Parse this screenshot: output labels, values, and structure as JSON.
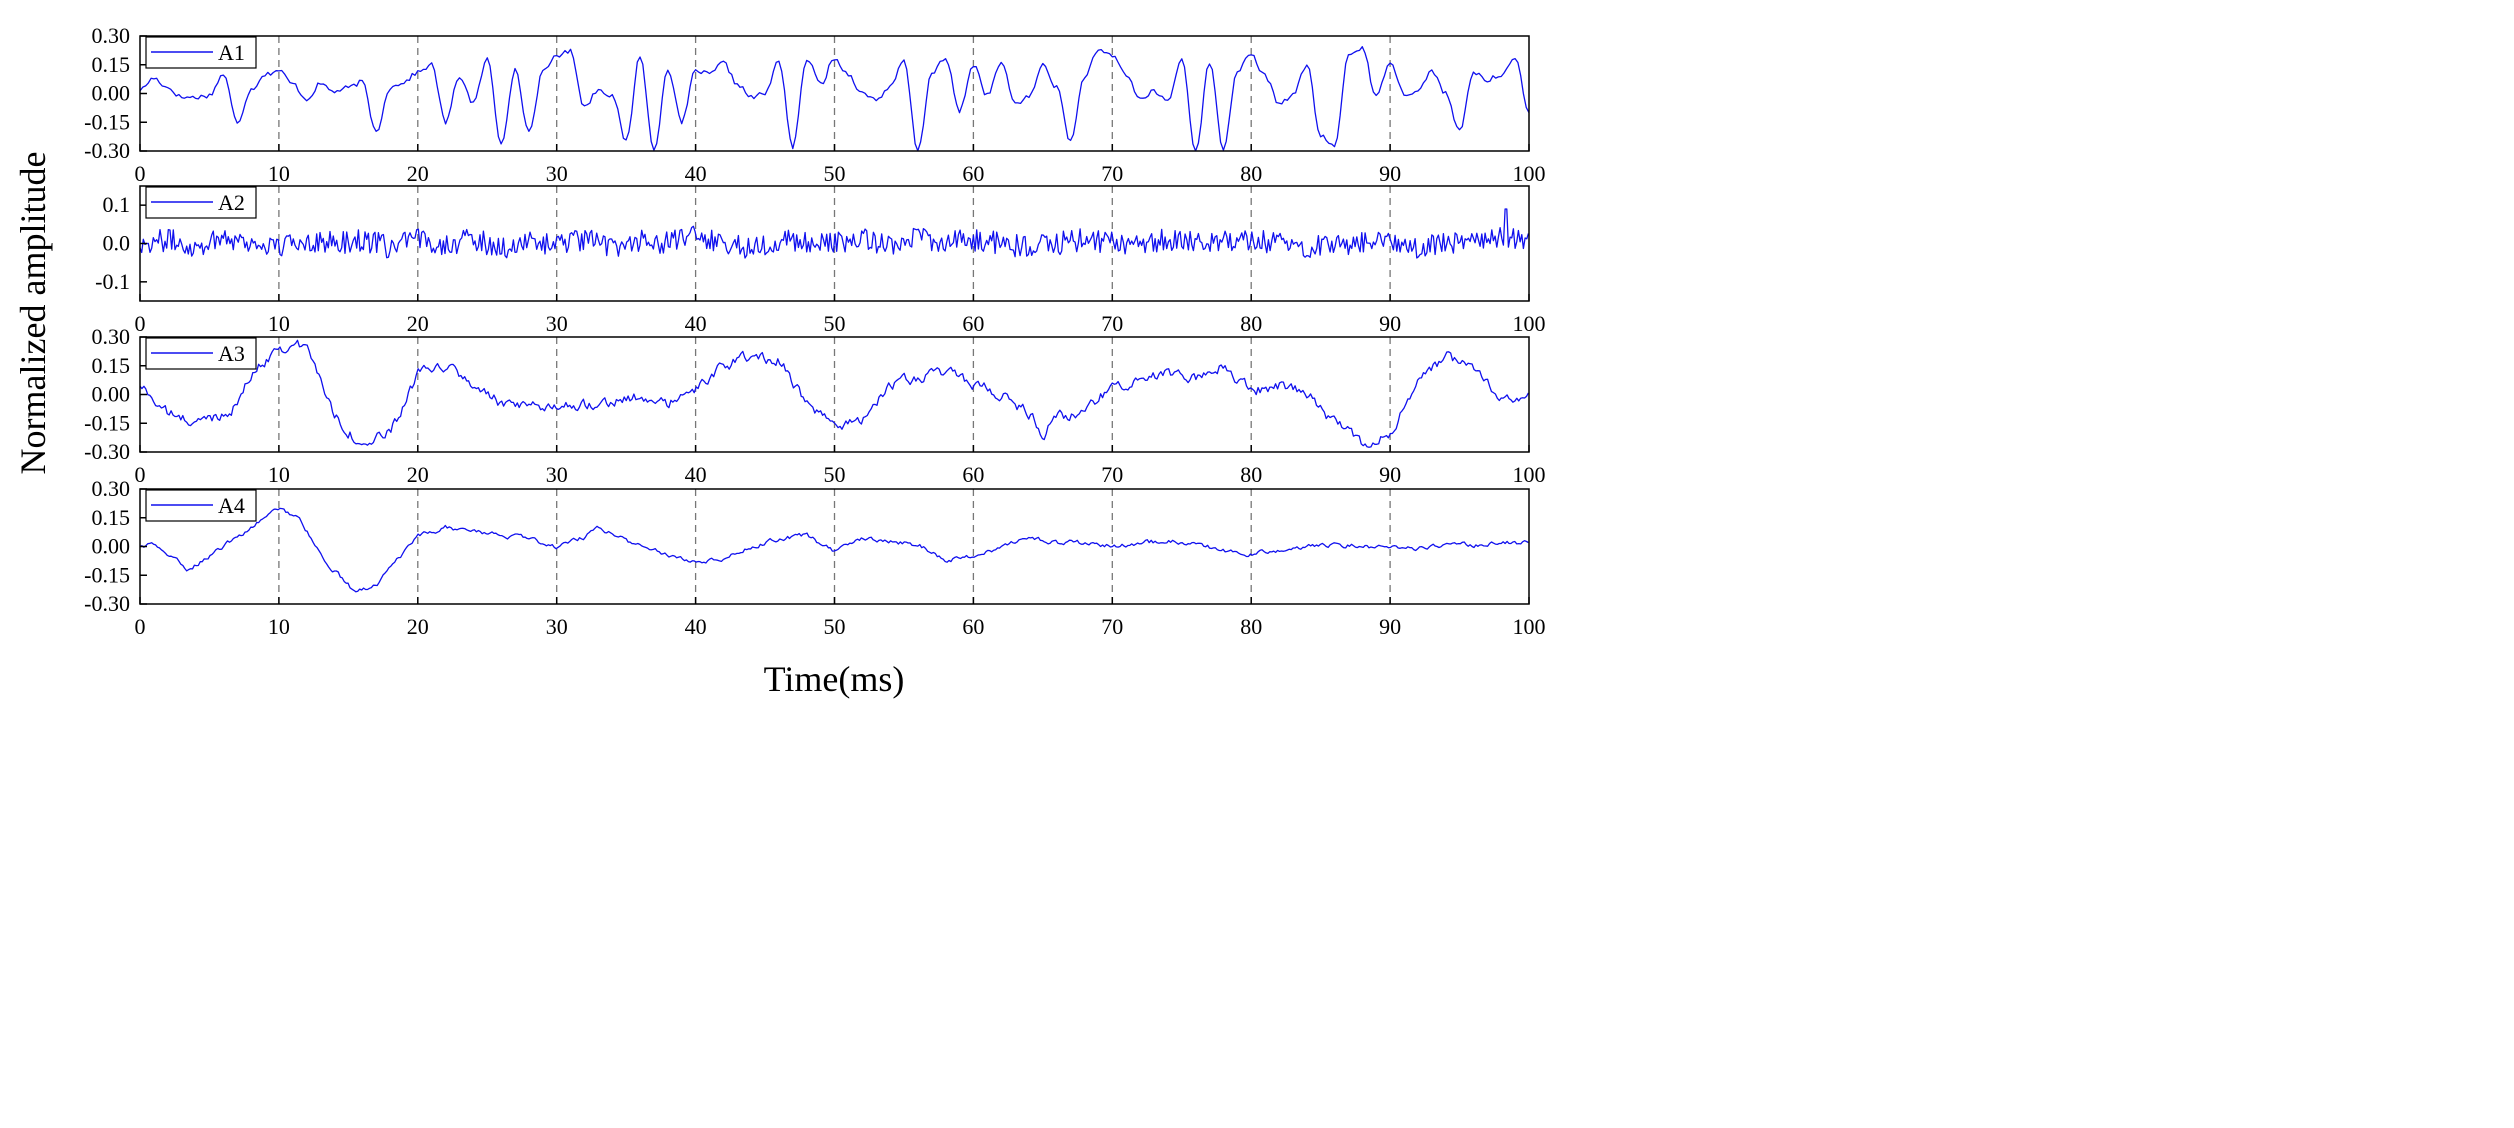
{
  "chart_data": {
    "type": "line",
    "ylabel": "Normalized amplitude",
    "xlabel": "Time(ms)",
    "x_range": [
      0,
      100
    ],
    "x_ticks": [
      0,
      10,
      20,
      30,
      40,
      50,
      60,
      70,
      80,
      90,
      100
    ],
    "vertical_gridlines": [
      10,
      20,
      30,
      40,
      50,
      60,
      70,
      80,
      90
    ],
    "grid_style": "dashed vertical",
    "line_color": "#1010ee",
    "panels": [
      {
        "name": "A1",
        "legend": "A1",
        "legend_position": "top-left",
        "ylim": [
          -0.3,
          0.3
        ],
        "y_ticks": [
          -0.3,
          -0.15,
          0.0,
          0.15,
          0.3
        ],
        "y_tick_labels": [
          "-0.30",
          "-0.15",
          "0.00",
          "0.15",
          "0.30"
        ],
        "x": [
          0,
          1,
          2,
          3,
          4,
          5,
          6,
          7,
          8,
          9,
          10,
          11,
          12,
          13,
          14,
          15,
          16,
          17,
          18,
          19,
          20,
          21,
          22,
          23,
          24,
          25,
          26,
          27,
          28,
          29,
          30,
          31,
          32,
          33,
          34,
          35,
          36,
          37,
          38,
          39,
          40,
          41,
          42,
          43,
          44,
          45,
          46,
          47,
          48,
          49,
          50,
          51,
          52,
          53,
          54,
          55,
          56,
          57,
          58,
          59,
          60,
          61,
          62,
          63,
          64,
          65,
          66,
          67,
          68,
          69,
          70,
          71,
          72,
          73,
          74,
          75,
          76,
          77,
          78,
          79,
          80,
          81,
          82,
          83,
          84,
          85,
          86,
          87,
          88,
          89,
          90,
          91,
          92,
          93,
          94,
          95,
          96,
          97,
          98,
          99,
          100
        ],
        "values": [
          0.02,
          0.08,
          0.03,
          -0.02,
          -0.02,
          -0.01,
          0.1,
          -0.15,
          0.02,
          0.1,
          0.12,
          0.05,
          -0.03,
          0.05,
          0.01,
          0.03,
          0.06,
          -0.2,
          0.03,
          0.06,
          0.11,
          0.15,
          -0.15,
          0.09,
          -0.05,
          0.18,
          -0.26,
          0.12,
          -0.2,
          0.11,
          0.2,
          0.22,
          -0.07,
          0.02,
          -0.01,
          -0.25,
          0.2,
          -0.3,
          0.13,
          -0.15,
          0.12,
          0.1,
          0.16,
          0.05,
          -0.02,
          0.0,
          0.17,
          -0.28,
          0.18,
          0.05,
          0.18,
          0.1,
          0.0,
          -0.03,
          0.03,
          0.17,
          -0.3,
          0.11,
          0.18,
          -0.09,
          0.15,
          -0.01,
          0.16,
          -0.05,
          -0.02,
          0.15,
          0.03,
          -0.25,
          0.09,
          0.22,
          0.2,
          0.1,
          -0.03,
          0.01,
          -0.04,
          0.18,
          -0.3,
          0.16,
          -0.29,
          0.12,
          0.2,
          0.09,
          -0.05,
          -0.01,
          0.15,
          -0.22,
          -0.28,
          0.2,
          0.24,
          -0.02,
          0.17,
          0.0,
          0.01,
          0.12,
          0.0,
          -0.2,
          0.11,
          0.07,
          0.1,
          0.18,
          -0.1
        ]
      },
      {
        "name": "A2",
        "legend": "A2",
        "legend_position": "top-left",
        "ylim": [
          -0.15,
          0.15
        ],
        "y_ticks": [
          -0.1,
          0.0,
          0.1
        ],
        "y_tick_labels": [
          "-0.1",
          "0.0",
          "0.1"
        ],
        "x": [
          0,
          2,
          4,
          6,
          8,
          10,
          12,
          14,
          16,
          18,
          20,
          22,
          24,
          26,
          28,
          30,
          32,
          34,
          36,
          38,
          40,
          42,
          44,
          46,
          48,
          50,
          52,
          54,
          56,
          58,
          60,
          62,
          64,
          66,
          68,
          70,
          72,
          74,
          76,
          78,
          80,
          82,
          84,
          86,
          88,
          90,
          92,
          94,
          96,
          98,
          100
        ],
        "values": [
          0.0,
          0.01,
          -0.01,
          0.02,
          0.0,
          -0.01,
          0.01,
          0.0,
          0.01,
          -0.01,
          0.01,
          0.0,
          0.01,
          -0.01,
          0.0,
          0.0,
          0.01,
          -0.01,
          0.01,
          0.0,
          0.02,
          0.0,
          -0.01,
          0.01,
          0.0,
          0.0,
          0.01,
          0.0,
          0.02,
          0.0,
          0.01,
          0.0,
          -0.01,
          0.0,
          0.01,
          0.0,
          0.0,
          0.01,
          0.0,
          0.01,
          0.01,
          0.0,
          -0.01,
          0.0,
          0.0,
          0.01,
          -0.01,
          0.0,
          0.01,
          0.02,
          0.0
        ],
        "noise_amplitude": 0.03,
        "peak": {
          "x": 98.3,
          "value": 0.09
        }
      },
      {
        "name": "A3",
        "legend": "A3",
        "legend_position": "top-left",
        "ylim": [
          -0.3,
          0.3
        ],
        "y_ticks": [
          -0.3,
          -0.15,
          0.0,
          0.15,
          0.3
        ],
        "y_tick_labels": [
          "-0.30",
          "-0.15",
          "0.00",
          "0.15",
          "0.30"
        ],
        "x": [
          0,
          2,
          4,
          6,
          7,
          8,
          10,
          12,
          14,
          16,
          18,
          20,
          22,
          24,
          26,
          28,
          30,
          32,
          34,
          36,
          38,
          40,
          42,
          44,
          46,
          48,
          50,
          52,
          54,
          56,
          58,
          60,
          62,
          64,
          65,
          66,
          68,
          70,
          72,
          74,
          76,
          78,
          80,
          82,
          84,
          86,
          88,
          90,
          92,
          94,
          96,
          98,
          100
        ],
        "values": [
          0.05,
          -0.1,
          -0.15,
          -0.1,
          -0.05,
          0.1,
          0.25,
          0.25,
          -0.1,
          -0.27,
          -0.2,
          0.1,
          0.15,
          0.05,
          -0.05,
          -0.08,
          -0.05,
          -0.05,
          -0.03,
          -0.02,
          -0.05,
          0.02,
          0.15,
          0.2,
          0.18,
          -0.05,
          -0.18,
          -0.12,
          0.05,
          0.08,
          0.12,
          0.05,
          0.0,
          -0.1,
          -0.2,
          -0.12,
          -0.1,
          0.05,
          0.08,
          0.12,
          0.08,
          0.15,
          0.02,
          0.05,
          0.0,
          -0.15,
          -0.25,
          -0.2,
          0.05,
          0.2,
          0.12,
          -0.02,
          0.0
        ],
        "noise_amplitude": 0.025
      },
      {
        "name": "A4",
        "legend": "A4",
        "legend_position": "top-left",
        "ylim": [
          -0.3,
          0.3
        ],
        "y_ticks": [
          -0.3,
          -0.15,
          0.0,
          0.15,
          0.3
        ],
        "y_tick_labels": [
          "-0.30",
          "-0.15",
          "0.00",
          "0.15",
          "0.30"
        ],
        "x": [
          0,
          1,
          3.5,
          6,
          8,
          10,
          11.5,
          13,
          15.5,
          17,
          20,
          22,
          24,
          26,
          28,
          30,
          32,
          33,
          36,
          38,
          40,
          42,
          44,
          46,
          48,
          50,
          52,
          54,
          56,
          58,
          60,
          62,
          64,
          66,
          68,
          70,
          72,
          74,
          76,
          78,
          80,
          82,
          84,
          86,
          88,
          90,
          92,
          94,
          96,
          98,
          100
        ],
        "values": [
          0.0,
          0.01,
          -0.12,
          0.0,
          0.1,
          0.2,
          0.15,
          -0.05,
          -0.24,
          -0.2,
          0.05,
          0.1,
          0.08,
          0.06,
          0.04,
          0.0,
          0.05,
          0.1,
          0.0,
          -0.04,
          -0.08,
          -0.06,
          0.0,
          0.04,
          0.06,
          -0.03,
          0.04,
          0.03,
          0.01,
          -0.07,
          -0.05,
          0.0,
          0.05,
          0.02,
          0.02,
          0.0,
          0.02,
          0.03,
          0.01,
          -0.02,
          -0.04,
          -0.02,
          0.0,
          0.01,
          0.0,
          0.0,
          -0.01,
          0.01,
          0.01,
          0.02,
          0.02
        ],
        "noise_amplitude": 0.01
      }
    ]
  }
}
